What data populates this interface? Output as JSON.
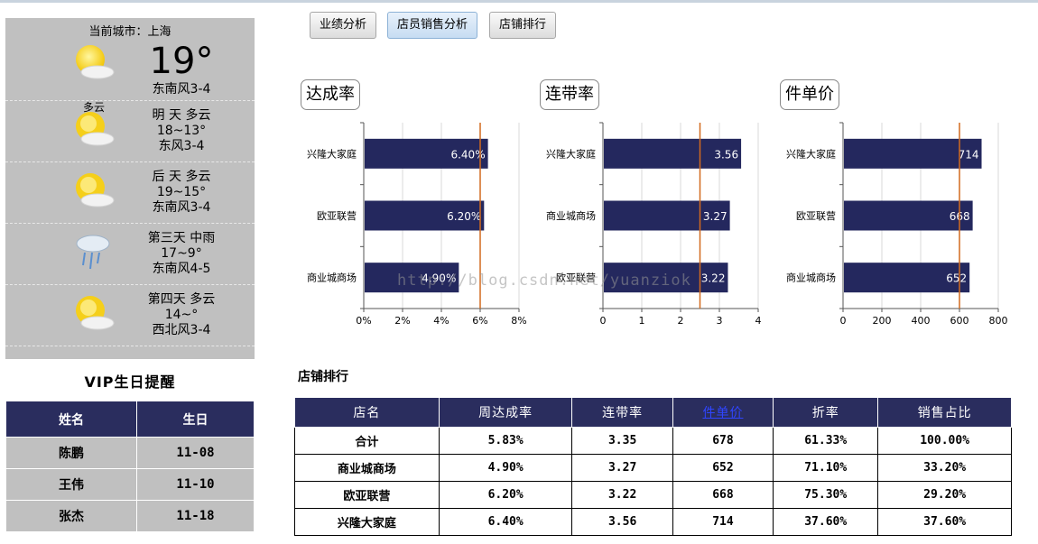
{
  "weather": {
    "city_label": "当前城市：上海",
    "today": {
      "condition": "多云",
      "temp": "19°",
      "wind": "东南风3-4",
      "icon": "partly-cloudy-icon"
    },
    "forecast": [
      {
        "line1": "明 天 多云",
        "temp": "18~13°",
        "wind": "东风3-4",
        "icon": "partly-cloudy-icon"
      },
      {
        "line1": "后 天 多云",
        "temp": "19~15°",
        "wind": "东南风3-4",
        "icon": "partly-cloudy-icon"
      },
      {
        "line1": "第三天 中雨",
        "temp": "17~9°",
        "wind": "东南风4-5",
        "icon": "rain-icon"
      },
      {
        "line1": "第四天 多云",
        "temp": "14~°",
        "wind": "西北风3-4",
        "icon": "partly-cloudy-icon"
      }
    ]
  },
  "vip": {
    "title": "VIP生日提醒",
    "headers": [
      "姓名",
      "生日"
    ],
    "rows": [
      [
        "陈鹏",
        "11-08"
      ],
      [
        "王伟",
        "11-10"
      ],
      [
        "张杰",
        "11-18"
      ]
    ]
  },
  "tabs": [
    {
      "label": "业绩分析",
      "active": false
    },
    {
      "label": "店员销售分析",
      "active": true
    },
    {
      "label": "店铺排行",
      "active": false
    }
  ],
  "chart_data": [
    {
      "type": "bar",
      "title": "达成率",
      "categories": [
        "兴隆大家庭",
        "欧亚联营",
        "商业城商场"
      ],
      "values": [
        6.4,
        6.2,
        4.9
      ],
      "labels": [
        "6.40%",
        "6.20%",
        "4.90%"
      ],
      "xlim": [
        0,
        8
      ],
      "ticks": [
        "0%",
        "2%",
        "4%",
        "6%",
        "8%"
      ],
      "reference_line": 6,
      "bar_color": "#24285e",
      "line_color": "#d26a1e"
    },
    {
      "type": "bar",
      "title": "连带率",
      "categories": [
        "兴隆大家庭",
        "商业城商场",
        "欧亚联营"
      ],
      "values": [
        3.56,
        3.27,
        3.22
      ],
      "labels": [
        "3.56",
        "3.27",
        "3.22"
      ],
      "xlim": [
        0,
        4
      ],
      "ticks": [
        "0",
        "1",
        "2",
        "3",
        "4"
      ],
      "reference_line": 2.5,
      "bar_color": "#24285e",
      "line_color": "#d26a1e"
    },
    {
      "type": "bar",
      "title": "件单价",
      "categories": [
        "兴隆大家庭",
        "欧亚联营",
        "商业城商场"
      ],
      "values": [
        714,
        668,
        652
      ],
      "labels": [
        "714",
        "668",
        "652"
      ],
      "xlim": [
        0,
        800
      ],
      "ticks": [
        "0",
        "200",
        "400",
        "600",
        "800"
      ],
      "reference_line": 600,
      "bar_color": "#24285e",
      "line_color": "#d26a1e"
    }
  ],
  "ranking": {
    "title": "店铺排行",
    "headers": [
      "店名",
      "周达成率",
      "连带率",
      "件单价",
      "折率",
      "销售占比"
    ],
    "rows": [
      [
        "合计",
        "5.83%",
        "3.35",
        "678",
        "61.33%",
        "100.00%"
      ],
      [
        "商业城商场",
        "4.90%",
        "3.27",
        "652",
        "71.10%",
        "33.20%"
      ],
      [
        "欧亚联营",
        "6.20%",
        "3.22",
        "668",
        "75.30%",
        "29.20%"
      ],
      [
        "兴隆大家庭",
        "6.40%",
        "3.56",
        "714",
        "37.60%",
        "37.60%"
      ]
    ]
  },
  "watermark": "http://blog.csdn.net/yuanziok"
}
